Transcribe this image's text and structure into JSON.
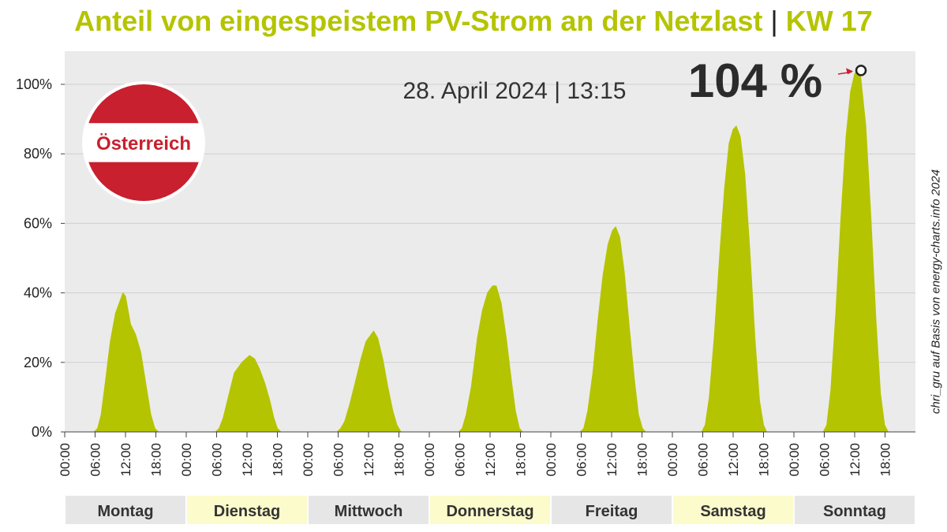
{
  "title": {
    "main": "Anteil von eingespeistem PV-Strom an der Netzlast",
    "separator": "|",
    "week": "KW 17"
  },
  "badge": {
    "label": "Österreich"
  },
  "timestamp_label": "28. April 2024 | 13:15",
  "peak_label": "104 %",
  "credit": "chri_gru auf Basis von energy-charts.info 2024",
  "colors": {
    "accent": "#b5c400",
    "plot_bg": "#ebebeb",
    "grid": "#cfcfcf",
    "flag_red": "#c8202e",
    "day_shade_grey": "#e6e6e6",
    "day_shade_yellow": "#fbfbcc",
    "arrow": "#c8202e"
  },
  "chart_data": {
    "type": "area",
    "title": "Anteil von eingespeistem PV-Strom an der Netzlast",
    "xlabel": "",
    "ylabel": "",
    "ylim": [
      0,
      1.06
    ],
    "yticks": [
      "0%",
      "20%",
      "40%",
      "60%",
      "80%",
      "100%"
    ],
    "ytick_values": [
      0,
      0.2,
      0.4,
      0.6,
      0.8,
      1.0
    ],
    "xtick_labels": [
      "00:00",
      "06:00",
      "12:00",
      "18:00"
    ],
    "grid": true,
    "days": [
      {
        "label": "Montag",
        "shade": "grey"
      },
      {
        "label": "Dienstag",
        "shade": "yellow"
      },
      {
        "label": "Mittwoch",
        "shade": "grey"
      },
      {
        "label": "Donnerstag",
        "shade": "yellow"
      },
      {
        "label": "Freitag",
        "shade": "grey"
      },
      {
        "label": "Samstag",
        "shade": "yellow"
      },
      {
        "label": "Sonntag",
        "shade": "grey"
      }
    ],
    "series": [
      {
        "values": [
          [
            0.0,
            5.8,
            0
          ],
          [
            0.0,
            6.5,
            0.01
          ],
          [
            0.0,
            7.2,
            0.05
          ],
          [
            0.0,
            8.0,
            0.14
          ],
          [
            0.0,
            9.0,
            0.26
          ],
          [
            0.0,
            10.0,
            0.34
          ],
          [
            0.0,
            11.0,
            0.38
          ],
          [
            0.0,
            11.5,
            0.4
          ],
          [
            0.0,
            12.0,
            0.39
          ],
          [
            0.0,
            13.0,
            0.31
          ],
          [
            0.0,
            14.0,
            0.28
          ],
          [
            0.0,
            15.0,
            0.23
          ],
          [
            0.0,
            16.0,
            0.14
          ],
          [
            0.0,
            17.0,
            0.05
          ],
          [
            0.0,
            17.8,
            0.01
          ],
          [
            0.0,
            18.5,
            0
          ],
          [
            1,
            5.8,
            0
          ],
          [
            1,
            6.5,
            0.01
          ],
          [
            1,
            7.3,
            0.04
          ],
          [
            1,
            8.3,
            0.1
          ],
          [
            1,
            9.5,
            0.17
          ],
          [
            1,
            11.0,
            0.2
          ],
          [
            1,
            12.5,
            0.22
          ],
          [
            1,
            13.5,
            0.21
          ],
          [
            1,
            14.5,
            0.18
          ],
          [
            1,
            15.5,
            0.14
          ],
          [
            1,
            16.5,
            0.09
          ],
          [
            1,
            17.3,
            0.04
          ],
          [
            1,
            18.0,
            0.01
          ],
          [
            1,
            18.7,
            0
          ],
          [
            2,
            5.8,
            0
          ],
          [
            2,
            6.5,
            0.01
          ],
          [
            2,
            7.3,
            0.03
          ],
          [
            2,
            8.3,
            0.08
          ],
          [
            2,
            9.5,
            0.15
          ],
          [
            2,
            10.5,
            0.21
          ],
          [
            2,
            11.5,
            0.26
          ],
          [
            2,
            12.5,
            0.28
          ],
          [
            2,
            13.0,
            0.29
          ],
          [
            2,
            13.8,
            0.27
          ],
          [
            2,
            14.8,
            0.21
          ],
          [
            2,
            15.8,
            0.13
          ],
          [
            2,
            16.8,
            0.06
          ],
          [
            2,
            17.6,
            0.02
          ],
          [
            2,
            18.4,
            0
          ],
          [
            3,
            5.8,
            0
          ],
          [
            3,
            6.5,
            0.01
          ],
          [
            3,
            7.3,
            0.05
          ],
          [
            3,
            8.3,
            0.13
          ],
          [
            3,
            9.5,
            0.27
          ],
          [
            3,
            10.5,
            0.35
          ],
          [
            3,
            11.5,
            0.4
          ],
          [
            3,
            12.5,
            0.42
          ],
          [
            3,
            13.2,
            0.42
          ],
          [
            3,
            14.2,
            0.37
          ],
          [
            3,
            15.2,
            0.27
          ],
          [
            3,
            16.2,
            0.15
          ],
          [
            3,
            17.0,
            0.06
          ],
          [
            3,
            17.8,
            0.01
          ],
          [
            3,
            18.4,
            0
          ],
          [
            4,
            5.8,
            0
          ],
          [
            4,
            6.5,
            0.01
          ],
          [
            4,
            7.3,
            0.06
          ],
          [
            4,
            8.3,
            0.17
          ],
          [
            4,
            9.3,
            0.32
          ],
          [
            4,
            10.3,
            0.45
          ],
          [
            4,
            11.3,
            0.54
          ],
          [
            4,
            12.2,
            0.58
          ],
          [
            4,
            12.8,
            0.59
          ],
          [
            4,
            13.6,
            0.56
          ],
          [
            4,
            14.5,
            0.46
          ],
          [
            4,
            15.5,
            0.3
          ],
          [
            4,
            16.5,
            0.15
          ],
          [
            4,
            17.3,
            0.05
          ],
          [
            4,
            18.1,
            0.01
          ],
          [
            4,
            18.7,
            0
          ],
          [
            5,
            5.8,
            0
          ],
          [
            5,
            6.5,
            0.02
          ],
          [
            5,
            7.3,
            0.1
          ],
          [
            5,
            8.3,
            0.28
          ],
          [
            5,
            9.3,
            0.5
          ],
          [
            5,
            10.3,
            0.7
          ],
          [
            5,
            11.2,
            0.83
          ],
          [
            5,
            12.0,
            0.87
          ],
          [
            5,
            12.6,
            0.88
          ],
          [
            5,
            13.4,
            0.85
          ],
          [
            5,
            14.3,
            0.74
          ],
          [
            5,
            15.3,
            0.52
          ],
          [
            5,
            16.3,
            0.27
          ],
          [
            5,
            17.2,
            0.09
          ],
          [
            5,
            18.0,
            0.02
          ],
          [
            5,
            18.6,
            0
          ],
          [
            6,
            5.8,
            0
          ],
          [
            6,
            6.5,
            0.02
          ],
          [
            6,
            7.3,
            0.12
          ],
          [
            6,
            8.3,
            0.35
          ],
          [
            6,
            9.3,
            0.62
          ],
          [
            6,
            10.3,
            0.85
          ],
          [
            6,
            11.2,
            0.98
          ],
          [
            6,
            12.0,
            1.03
          ],
          [
            6,
            12.5,
            1.04
          ],
          [
            6,
            13.2,
            1.02
          ],
          [
            6,
            14.2,
            0.88
          ],
          [
            6,
            15.2,
            0.62
          ],
          [
            6,
            16.2,
            0.32
          ],
          [
            6,
            17.1,
            0.11
          ],
          [
            6,
            17.9,
            0.02
          ],
          [
            6,
            18.6,
            0
          ]
        ]
      }
    ],
    "peak": {
      "day_index": 6,
      "hour": 13.25,
      "value": 1.04
    }
  }
}
